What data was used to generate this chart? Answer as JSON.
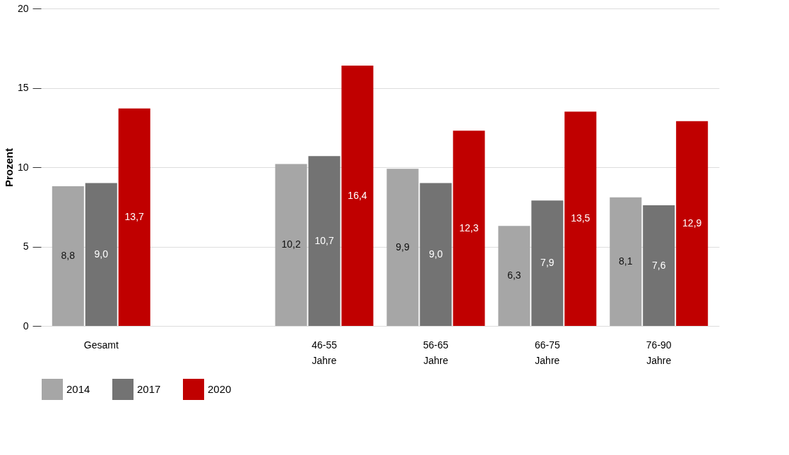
{
  "chart_data": {
    "type": "bar",
    "ylabel": "Prozent",
    "categories": [
      "Gesamt",
      null,
      "46-55 Jahre",
      "56-65 Jahre",
      "66-75 Jahre",
      "76-90 Jahre"
    ],
    "series": [
      {
        "name": "2014",
        "color": "#a6a6a6",
        "values": [
          8.8,
          null,
          10.2,
          9.9,
          6.3,
          8.1
        ],
        "value_labels": [
          "8,8",
          null,
          "10,2",
          "9,9",
          "6,3",
          "8,1"
        ]
      },
      {
        "name": "2017",
        "color": "#737373",
        "values": [
          9.0,
          null,
          10.7,
          9.0,
          7.9,
          7.6
        ],
        "value_labels": [
          "9,0",
          null,
          "10,7",
          "9,0",
          "7,9",
          "7,6"
        ]
      },
      {
        "name": "2020",
        "color": "#c00000",
        "values": [
          13.7,
          null,
          16.4,
          12.3,
          13.5,
          12.9
        ],
        "value_labels": [
          "13,7",
          null,
          "16,4",
          "12,3",
          "13,5",
          "12,9"
        ]
      }
    ],
    "ylim": [
      0,
      20
    ],
    "yticks": [
      0,
      5,
      10,
      15,
      20
    ],
    "grid": "y",
    "legend": "bottom"
  }
}
